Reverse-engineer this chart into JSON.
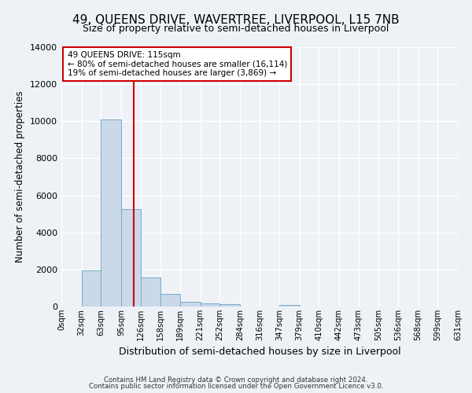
{
  "title": "49, QUEENS DRIVE, WAVERTREE, LIVERPOOL, L15 7NB",
  "subtitle": "Size of property relative to semi-detached houses in Liverpool",
  "xlabel": "Distribution of semi-detached houses by size in Liverpool",
  "ylabel": "Number of semi-detached properties",
  "bin_labels": [
    "0sqm",
    "32sqm",
    "63sqm",
    "95sqm",
    "126sqm",
    "158sqm",
    "189sqm",
    "221sqm",
    "252sqm",
    "284sqm",
    "316sqm",
    "347sqm",
    "379sqm",
    "410sqm",
    "442sqm",
    "473sqm",
    "505sqm",
    "536sqm",
    "568sqm",
    "599sqm",
    "631sqm"
  ],
  "bar_values": [
    0,
    1950,
    10100,
    5250,
    1580,
    660,
    250,
    160,
    110,
    0,
    0,
    100,
    0,
    0,
    0,
    0,
    0,
    0,
    0,
    0
  ],
  "bar_color": "#c9d9ea",
  "bar_edge_color": "#7aaac8",
  "vline_x": 115,
  "annotation_title": "49 QUEENS DRIVE: 115sqm",
  "annotation_line1": "← 80% of semi-detached houses are smaller (16,114)",
  "annotation_line2": "19% of semi-detached houses are larger (3,869) →",
  "annotation_box_color": "#ffffff",
  "annotation_box_edge": "#cc0000",
  "vline_color": "#cc0000",
  "ylim": [
    0,
    14000
  ],
  "yticks": [
    0,
    2000,
    4000,
    6000,
    8000,
    10000,
    12000,
    14000
  ],
  "footnote1": "Contains HM Land Registry data © Crown copyright and database right 2024.",
  "footnote2": "Contains public sector information licensed under the Open Government Licence v3.0.",
  "bg_color": "#eef2f7",
  "grid_color": "#ffffff",
  "title_fontsize": 11,
  "subtitle_fontsize": 9,
  "xlabel_fontsize": 9,
  "ylabel_fontsize": 8.5
}
